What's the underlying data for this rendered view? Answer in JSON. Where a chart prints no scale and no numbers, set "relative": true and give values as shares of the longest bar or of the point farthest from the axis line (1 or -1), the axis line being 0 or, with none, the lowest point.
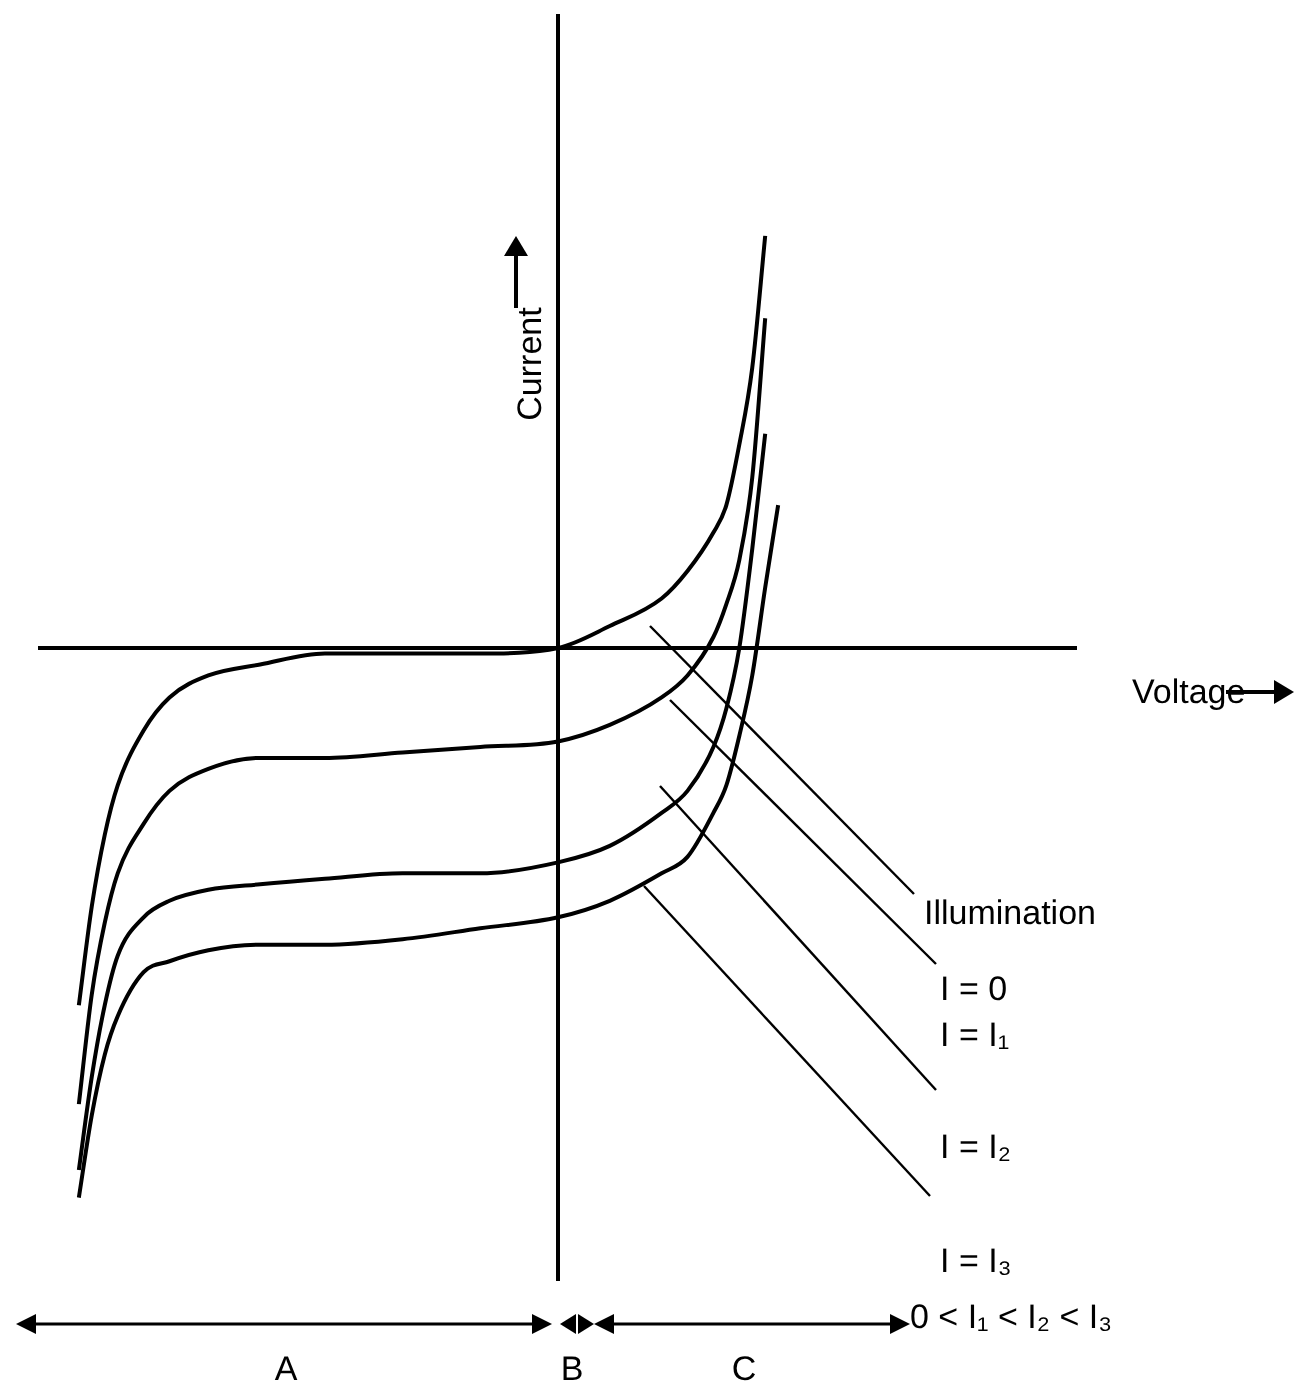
{
  "chart_data": {
    "type": "line",
    "relative": true,
    "legend": false,
    "marker": "none",
    "xlabel": "Voltage",
    "ylabel": "Current",
    "annotations": [
      "Illumination",
      "I = 0",
      "I = I₁",
      "I = I₂",
      "I = I₃",
      "0 < I₁ < I₂ < I₃",
      "A",
      "B",
      "C"
    ],
    "categories": [
      null,
      null,
      null,
      null,
      null,
      null,
      null,
      null,
      null,
      null,
      null,
      null,
      null,
      null,
      null,
      null,
      null,
      null,
      null,
      null,
      null,
      null,
      null,
      null,
      null,
      null,
      null,
      null,
      null,
      null,
      null,
      null,
      null,
      null,
      null,
      null,
      null,
      null,
      null,
      null,
      null,
      null,
      null,
      null,
      null,
      null,
      null,
      null,
      null,
      null,
      null,
      null,
      null,
      null,
      null,
      null,
      null,
      null,
      null,
      null,
      null,
      null,
      null,
      null,
      null,
      null,
      null,
      null,
      null,
      null,
      null,
      null,
      null,
      null,
      null,
      null,
      null,
      null,
      null,
      null,
      null
    ],
    "series": [
      {
        "color": "#000000",
        "values": [
          null,
          null,
          null,
          -0.65,
          -0.47,
          -0.34,
          -0.25,
          null,
          -0.15,
          null,
          -0.09,
          null,
          null,
          -0.05,
          null,
          null,
          null,
          -0.03,
          null,
          null,
          null,
          null,
          -0.01,
          null,
          null,
          null,
          null,
          null,
          -0.01,
          null,
          null,
          null,
          null,
          null,
          -0.01,
          null,
          null,
          null,
          null,
          null,
          0,
          null,
          null,
          null,
          0.04,
          null,
          null,
          null,
          0.09,
          null,
          0.14,
          null,
          0.21,
          0.26,
          0.37,
          0.51,
          0.75,
          null,
          null,
          null,
          null,
          null,
          null,
          null,
          null,
          null,
          null,
          null,
          null,
          null,
          null,
          null,
          null,
          null,
          null,
          null,
          null,
          null,
          null,
          null,
          null
        ]
      },
      {
        "color": "#000000",
        "values": [
          null,
          null,
          null,
          -0.83,
          -0.63,
          -0.5,
          -0.41,
          null,
          -0.32,
          null,
          -0.26,
          null,
          null,
          -0.22,
          null,
          null,
          null,
          -0.2,
          null,
          null,
          null,
          null,
          -0.2,
          null,
          null,
          null,
          null,
          null,
          -0.19,
          null,
          null,
          null,
          null,
          null,
          -0.18,
          null,
          null,
          null,
          null,
          null,
          -0.17,
          null,
          null,
          null,
          -0.14,
          null,
          null,
          null,
          -0.09,
          null,
          -0.05,
          null,
          0.02,
          0.08,
          0.16,
          0.31,
          0.6,
          null,
          null,
          null,
          null,
          null,
          null,
          null,
          null,
          null,
          null,
          null,
          null,
          null,
          null,
          null,
          null,
          null,
          null,
          null,
          null,
          null,
          null,
          null,
          null
        ]
      },
      {
        "color": "#000000",
        "values": [
          null,
          null,
          null,
          -0.95,
          -0.78,
          -0.65,
          -0.56,
          null,
          -0.49,
          null,
          -0.46,
          null,
          null,
          -0.44,
          null,
          null,
          null,
          -0.43,
          null,
          null,
          null,
          null,
          -0.42,
          null,
          null,
          null,
          null,
          null,
          -0.41,
          null,
          null,
          null,
          null,
          null,
          -0.41,
          null,
          null,
          null,
          null,
          null,
          -0.39,
          null,
          null,
          null,
          -0.36,
          null,
          null,
          null,
          -0.3,
          null,
          -0.26,
          null,
          -0.18,
          -0.11,
          0,
          0.18,
          0.39,
          null,
          null,
          null,
          null,
          null,
          null,
          null,
          null,
          null,
          null,
          null,
          null,
          null,
          null,
          null,
          null,
          null,
          null,
          null,
          null,
          null,
          null,
          null,
          null
        ]
      },
      {
        "color": "#000000",
        "values": [
          null,
          null,
          null,
          -1,
          -0.85,
          -0.74,
          -0.67,
          null,
          -0.59,
          null,
          -0.57,
          null,
          null,
          -0.55,
          null,
          null,
          null,
          -0.54,
          null,
          null,
          null,
          null,
          -0.54,
          null,
          null,
          null,
          null,
          null,
          -0.53,
          null,
          null,
          null,
          null,
          null,
          -0.51,
          null,
          null,
          null,
          null,
          null,
          -0.49,
          null,
          null,
          null,
          -0.46,
          null,
          null,
          null,
          -0.41,
          null,
          -0.38,
          null,
          -0.3,
          -0.25,
          -0.16,
          -0.05,
          0.11,
          0.26,
          null,
          null,
          null,
          null,
          null,
          null,
          null,
          null,
          null,
          null,
          null,
          null,
          null,
          null,
          null,
          null,
          null,
          null,
          null,
          null,
          null,
          null,
          null
        ]
      }
    ]
  }
}
